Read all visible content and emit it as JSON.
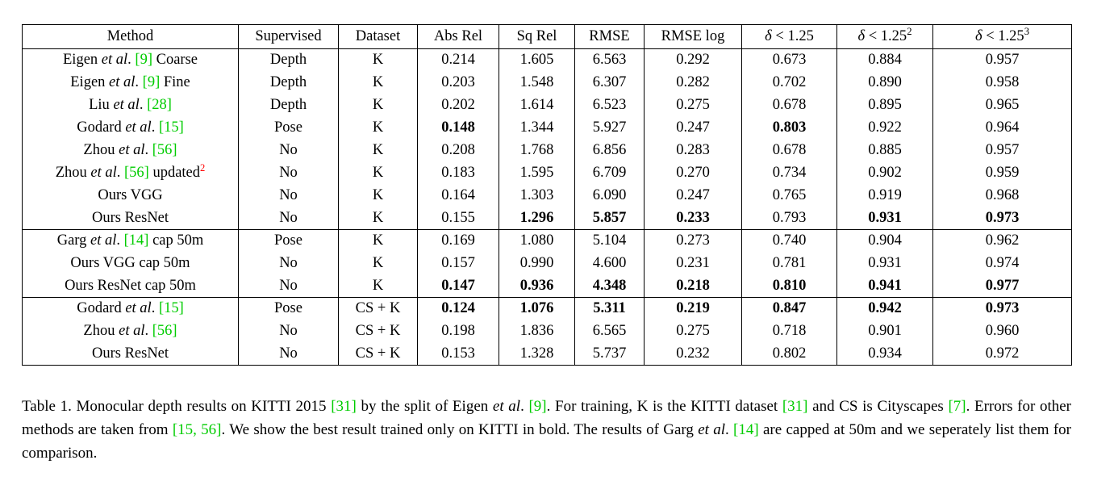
{
  "colors": {
    "citation": "#00cc00",
    "footnote_superscript": "#ff0000",
    "text": "#000000",
    "background": "#ffffff"
  },
  "table": {
    "headers": [
      [
        {
          "t": "Method"
        }
      ],
      [
        {
          "t": "Supervised"
        }
      ],
      [
        {
          "t": "Dataset"
        }
      ],
      [
        {
          "t": "Abs Rel"
        }
      ],
      [
        {
          "t": "Sq Rel"
        }
      ],
      [
        {
          "t": "RMSE"
        }
      ],
      [
        {
          "t": "RMSE log"
        }
      ],
      [
        {
          "t": "δ",
          "s": "i"
        },
        {
          "t": " < 1.25"
        }
      ],
      [
        {
          "t": "δ",
          "s": "i"
        },
        {
          "t": " < 1.25"
        },
        {
          "t": "2",
          "s": "sup"
        }
      ],
      [
        {
          "t": "δ",
          "s": "i"
        },
        {
          "t": " < 1.25"
        },
        {
          "t": "3",
          "s": "sup"
        }
      ]
    ],
    "groups": [
      {
        "rows": [
          {
            "method": [
              {
                "t": "Eigen "
              },
              {
                "t": "et al",
                "s": "i"
              },
              {
                "t": ". "
              },
              {
                "t": "[9]",
                "s": "c"
              },
              {
                "t": " Coarse"
              }
            ],
            "supervised": "Depth",
            "dataset": "K",
            "metrics": [
              {
                "v": "0.214",
                "b": false
              },
              {
                "v": "1.605",
                "b": false
              },
              {
                "v": "6.563",
                "b": false
              },
              {
                "v": "0.292",
                "b": false
              },
              {
                "v": "0.673",
                "b": false
              },
              {
                "v": "0.884",
                "b": false
              },
              {
                "v": "0.957",
                "b": false
              }
            ]
          },
          {
            "method": [
              {
                "t": "Eigen "
              },
              {
                "t": "et al",
                "s": "i"
              },
              {
                "t": ". "
              },
              {
                "t": "[9]",
                "s": "c"
              },
              {
                "t": " Fine"
              }
            ],
            "supervised": "Depth",
            "dataset": "K",
            "metrics": [
              {
                "v": "0.203",
                "b": false
              },
              {
                "v": "1.548",
                "b": false
              },
              {
                "v": "6.307",
                "b": false
              },
              {
                "v": "0.282",
                "b": false
              },
              {
                "v": "0.702",
                "b": false
              },
              {
                "v": "0.890",
                "b": false
              },
              {
                "v": "0.958",
                "b": false
              }
            ]
          },
          {
            "method": [
              {
                "t": "Liu "
              },
              {
                "t": "et al",
                "s": "i"
              },
              {
                "t": ". "
              },
              {
                "t": "[28]",
                "s": "c"
              }
            ],
            "supervised": "Depth",
            "dataset": "K",
            "metrics": [
              {
                "v": "0.202",
                "b": false
              },
              {
                "v": "1.614",
                "b": false
              },
              {
                "v": "6.523",
                "b": false
              },
              {
                "v": "0.275",
                "b": false
              },
              {
                "v": "0.678",
                "b": false
              },
              {
                "v": "0.895",
                "b": false
              },
              {
                "v": "0.965",
                "b": false
              }
            ]
          },
          {
            "method": [
              {
                "t": "Godard "
              },
              {
                "t": "et al",
                "s": "i"
              },
              {
                "t": ". "
              },
              {
                "t": "[15]",
                "s": "c"
              }
            ],
            "supervised": "Pose",
            "dataset": "K",
            "metrics": [
              {
                "v": "0.148",
                "b": true
              },
              {
                "v": "1.344",
                "b": false
              },
              {
                "v": "5.927",
                "b": false
              },
              {
                "v": "0.247",
                "b": false
              },
              {
                "v": "0.803",
                "b": true
              },
              {
                "v": "0.922",
                "b": false
              },
              {
                "v": "0.964",
                "b": false
              }
            ]
          },
          {
            "method": [
              {
                "t": "Zhou "
              },
              {
                "t": "et al",
                "s": "i"
              },
              {
                "t": ". "
              },
              {
                "t": "[56]",
                "s": "c"
              }
            ],
            "supervised": "No",
            "dataset": "K",
            "metrics": [
              {
                "v": "0.208",
                "b": false
              },
              {
                "v": "1.768",
                "b": false
              },
              {
                "v": "6.856",
                "b": false
              },
              {
                "v": "0.283",
                "b": false
              },
              {
                "v": "0.678",
                "b": false
              },
              {
                "v": "0.885",
                "b": false
              },
              {
                "v": "0.957",
                "b": false
              }
            ]
          },
          {
            "method": [
              {
                "t": "Zhou "
              },
              {
                "t": "et al",
                "s": "i"
              },
              {
                "t": ". "
              },
              {
                "t": "[56]",
                "s": "c"
              },
              {
                "t": " updated"
              },
              {
                "t": "2",
                "s": "rsup"
              }
            ],
            "supervised": "No",
            "dataset": "K",
            "metrics": [
              {
                "v": "0.183",
                "b": false
              },
              {
                "v": "1.595",
                "b": false
              },
              {
                "v": "6.709",
                "b": false
              },
              {
                "v": "0.270",
                "b": false
              },
              {
                "v": "0.734",
                "b": false
              },
              {
                "v": "0.902",
                "b": false
              },
              {
                "v": "0.959",
                "b": false
              }
            ]
          },
          {
            "method": [
              {
                "t": "Ours VGG"
              }
            ],
            "supervised": "No",
            "dataset": "K",
            "metrics": [
              {
                "v": "0.164",
                "b": false
              },
              {
                "v": "1.303",
                "b": false
              },
              {
                "v": "6.090",
                "b": false
              },
              {
                "v": "0.247",
                "b": false
              },
              {
                "v": "0.765",
                "b": false
              },
              {
                "v": "0.919",
                "b": false
              },
              {
                "v": "0.968",
                "b": false
              }
            ]
          },
          {
            "method": [
              {
                "t": "Ours ResNet"
              }
            ],
            "supervised": "No",
            "dataset": "K",
            "metrics": [
              {
                "v": "0.155",
                "b": false
              },
              {
                "v": "1.296",
                "b": true
              },
              {
                "v": "5.857",
                "b": true
              },
              {
                "v": "0.233",
                "b": true
              },
              {
                "v": "0.793",
                "b": false
              },
              {
                "v": "0.931",
                "b": true
              },
              {
                "v": "0.973",
                "b": true
              }
            ]
          }
        ]
      },
      {
        "rows": [
          {
            "method": [
              {
                "t": "Garg "
              },
              {
                "t": "et al",
                "s": "i"
              },
              {
                "t": ". "
              },
              {
                "t": "[14]",
                "s": "c"
              },
              {
                "t": " cap 50m"
              }
            ],
            "supervised": "Pose",
            "dataset": "K",
            "metrics": [
              {
                "v": "0.169",
                "b": false
              },
              {
                "v": "1.080",
                "b": false
              },
              {
                "v": "5.104",
                "b": false
              },
              {
                "v": "0.273",
                "b": false
              },
              {
                "v": "0.740",
                "b": false
              },
              {
                "v": "0.904",
                "b": false
              },
              {
                "v": "0.962",
                "b": false
              }
            ]
          },
          {
            "method": [
              {
                "t": "Ours VGG cap 50m"
              }
            ],
            "supervised": "No",
            "dataset": "K",
            "metrics": [
              {
                "v": "0.157",
                "b": false
              },
              {
                "v": "0.990",
                "b": false
              },
              {
                "v": "4.600",
                "b": false
              },
              {
                "v": "0.231",
                "b": false
              },
              {
                "v": "0.781",
                "b": false
              },
              {
                "v": "0.931",
                "b": false
              },
              {
                "v": "0.974",
                "b": false
              }
            ]
          },
          {
            "method": [
              {
                "t": "Ours ResNet cap 50m"
              }
            ],
            "supervised": "No",
            "dataset": "K",
            "metrics": [
              {
                "v": "0.147",
                "b": true
              },
              {
                "v": "0.936",
                "b": true
              },
              {
                "v": "4.348",
                "b": true
              },
              {
                "v": "0.218",
                "b": true
              },
              {
                "v": "0.810",
                "b": true
              },
              {
                "v": "0.941",
                "b": true
              },
              {
                "v": "0.977",
                "b": true
              }
            ]
          }
        ]
      },
      {
        "rows": [
          {
            "method": [
              {
                "t": "Godard "
              },
              {
                "t": "et al",
                "s": "i"
              },
              {
                "t": ". "
              },
              {
                "t": "[15]",
                "s": "c"
              }
            ],
            "supervised": "Pose",
            "dataset": "CS + K",
            "metrics": [
              {
                "v": "0.124",
                "b": true
              },
              {
                "v": "1.076",
                "b": true
              },
              {
                "v": "5.311",
                "b": true
              },
              {
                "v": "0.219",
                "b": true
              },
              {
                "v": "0.847",
                "b": true
              },
              {
                "v": "0.942",
                "b": true
              },
              {
                "v": "0.973",
                "b": true
              }
            ]
          },
          {
            "method": [
              {
                "t": "Zhou "
              },
              {
                "t": "et al",
                "s": "i"
              },
              {
                "t": ". "
              },
              {
                "t": "[56]",
                "s": "c"
              }
            ],
            "supervised": "No",
            "dataset": "CS + K",
            "metrics": [
              {
                "v": "0.198",
                "b": false
              },
              {
                "v": "1.836",
                "b": false
              },
              {
                "v": "6.565",
                "b": false
              },
              {
                "v": "0.275",
                "b": false
              },
              {
                "v": "0.718",
                "b": false
              },
              {
                "v": "0.901",
                "b": false
              },
              {
                "v": "0.960",
                "b": false
              }
            ]
          },
          {
            "method": [
              {
                "t": "Ours ResNet"
              }
            ],
            "supervised": "No",
            "dataset": "CS + K",
            "metrics": [
              {
                "v": "0.153",
                "b": false
              },
              {
                "v": "1.328",
                "b": false
              },
              {
                "v": "5.737",
                "b": false
              },
              {
                "v": "0.232",
                "b": false
              },
              {
                "v": "0.802",
                "b": false
              },
              {
                "v": "0.934",
                "b": false
              },
              {
                "v": "0.972",
                "b": false
              }
            ]
          }
        ]
      }
    ]
  },
  "caption": {
    "segments": [
      {
        "t": "Table 1. Monocular depth results on KITTI 2015 "
      },
      {
        "t": "[31]",
        "s": "c"
      },
      {
        "t": " by the split of Eigen "
      },
      {
        "t": "et al",
        "s": "i"
      },
      {
        "t": ". "
      },
      {
        "t": "[9]",
        "s": "c"
      },
      {
        "t": ". For training, K is the KITTI dataset "
      },
      {
        "t": "[31]",
        "s": "c"
      },
      {
        "t": " and CS is Cityscapes "
      },
      {
        "t": "[7]",
        "s": "c"
      },
      {
        "t": ". Errors for other methods are taken from "
      },
      {
        "t": "[15, 56]",
        "s": "c"
      },
      {
        "t": ". We show the best result trained only on KITTI in bold. The results of Garg "
      },
      {
        "t": "et al",
        "s": "i"
      },
      {
        "t": ". "
      },
      {
        "t": "[14]",
        "s": "c"
      },
      {
        "t": " are capped at 50m and we seperately list them for comparison."
      }
    ]
  }
}
